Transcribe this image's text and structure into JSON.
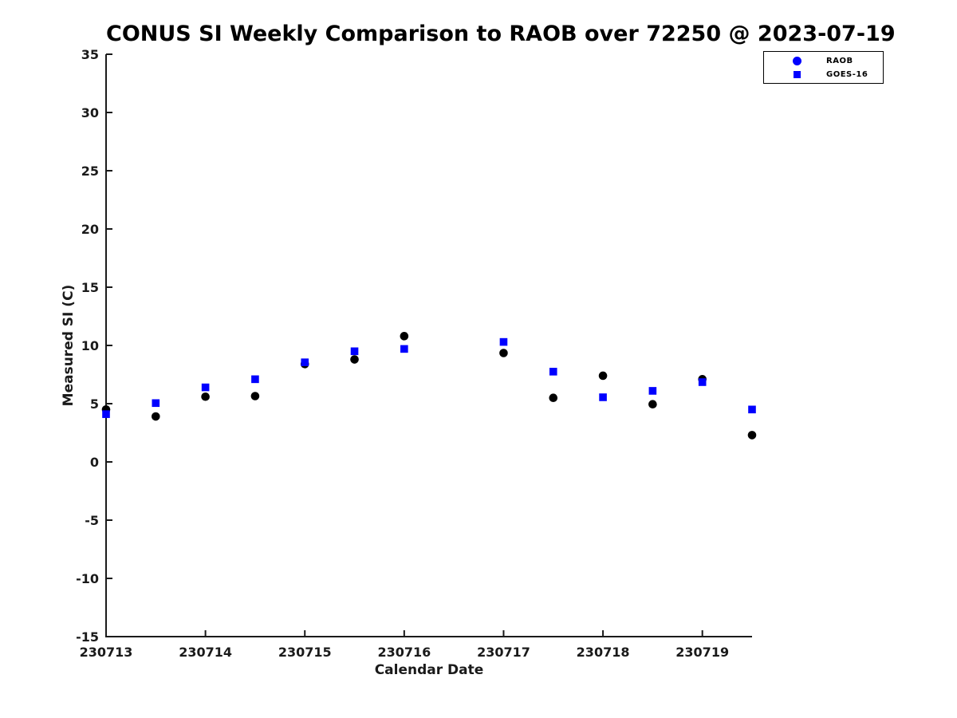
{
  "chart_data": {
    "type": "scatter",
    "title": "CONUS SI Weekly Comparison to RAOB over 72250 @ 2023-07-19",
    "xlabel": "Calendar Date",
    "ylabel": "Measured SI (C)",
    "xlim": [
      230713,
      230719.5
    ],
    "ylim": [
      -15,
      35
    ],
    "ytick_step": 5,
    "xticks": [
      230713,
      230714,
      230715,
      230716,
      230717,
      230718,
      230719
    ],
    "xtick_labels": [
      "230713",
      "230714",
      "230715",
      "230716",
      "230717",
      "230718",
      "230719"
    ],
    "grid": false,
    "legend_position": "top-right-outside",
    "axis_color": "#1a1a1a",
    "series": [
      {
        "name": "RAOB",
        "marker": "circle",
        "color": "#000000",
        "legend_marker_color": "#0000ff",
        "x": [
          230713,
          230713.5,
          230714,
          230714.5,
          230715,
          230715.5,
          230716,
          230717,
          230717.5,
          230718,
          230718.5,
          230719,
          230719.5
        ],
        "y": [
          4.5,
          3.9,
          5.6,
          5.65,
          8.4,
          8.8,
          10.8,
          9.35,
          5.5,
          7.4,
          4.95,
          7.1,
          2.3
        ]
      },
      {
        "name": "GOES-16",
        "marker": "square",
        "color": "#0000ff",
        "legend_marker_color": "#0000ff",
        "x": [
          230713,
          230713.5,
          230714,
          230714.5,
          230715,
          230715.5,
          230716,
          230717,
          230717.5,
          230718,
          230718.5,
          230719,
          230719.5
        ],
        "y": [
          4.1,
          5.05,
          6.4,
          7.1,
          8.55,
          9.5,
          9.7,
          10.3,
          7.75,
          5.55,
          6.1,
          6.85,
          4.5
        ]
      }
    ]
  }
}
